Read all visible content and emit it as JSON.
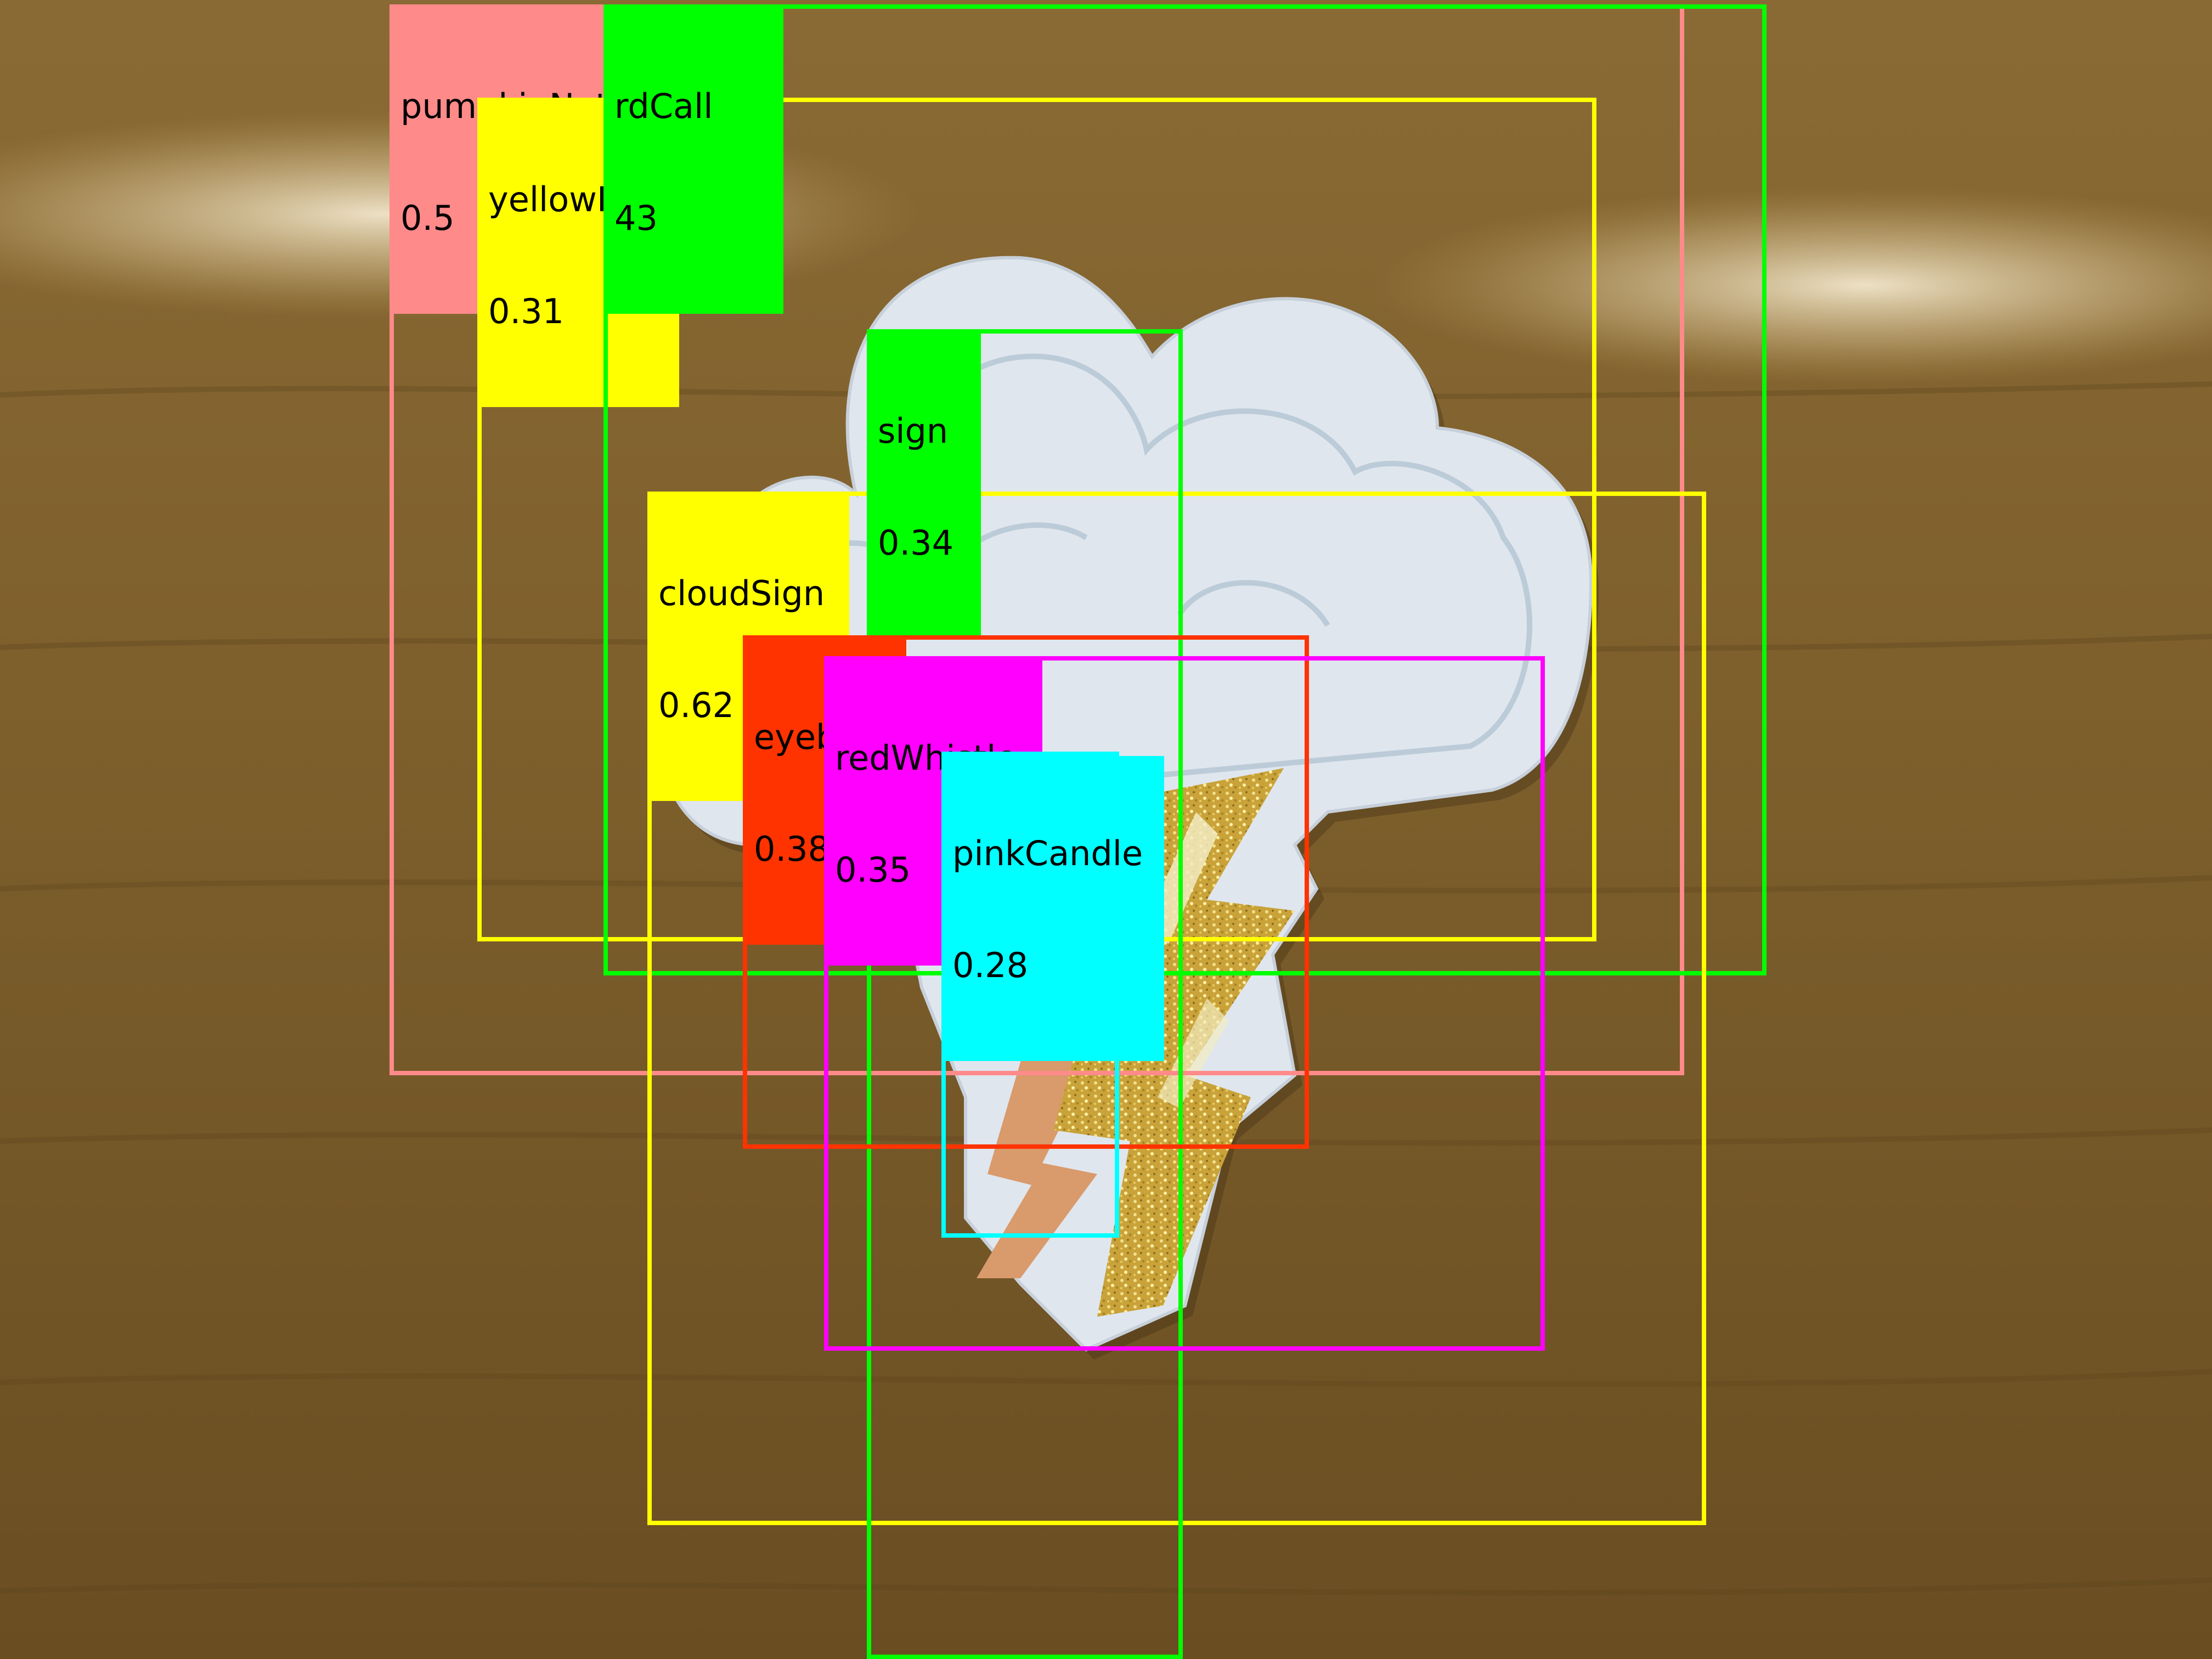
{
  "detections": [
    {
      "label": "pumpkinNotes",
      "score": "0.5",
      "color": "#ff8a8a"
    },
    {
      "label": "rdCall",
      "score": "43",
      "color": "#00ff00"
    },
    {
      "label": "yellowBag",
      "score": "0.31",
      "color": "#ffff00"
    },
    {
      "label": "sign",
      "score": "0.34",
      "color": "#00ff00"
    },
    {
      "label": "cloudSign",
      "score": "0.62",
      "color": "#ffff00"
    },
    {
      "label": "eyeball",
      "score": "0.38",
      "color": "#ff3300"
    },
    {
      "label": "redWhistle",
      "score": "0.35",
      "color": "#ff00ff"
    },
    {
      "label": "pinkCandle",
      "score": "0.28",
      "color": "#00ffff"
    }
  ]
}
